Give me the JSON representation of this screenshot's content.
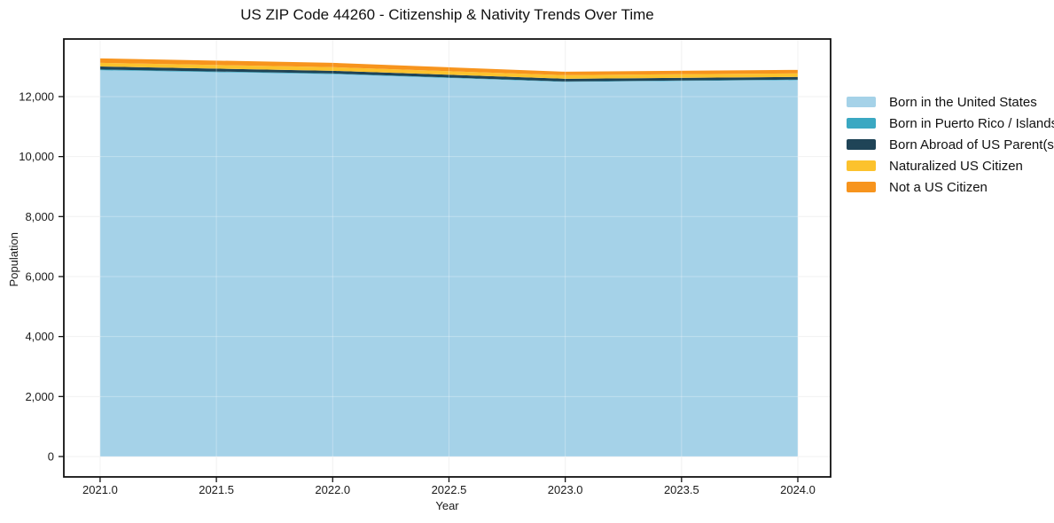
{
  "figure": {
    "title": "US ZIP Code 44260 - Citizenship & Nativity Trends Over Time",
    "xlabel": "Year",
    "ylabel": "Population"
  },
  "chart_data": {
    "type": "area",
    "stacked": true,
    "title": "US ZIP Code 44260 - Citizenship & Nativity Trends Over Time",
    "xlabel": "Year",
    "ylabel": "Population",
    "grid": true,
    "legend_position": "outside-right",
    "x": [
      2021,
      2022,
      2023,
      2024
    ],
    "series": [
      {
        "name": "Born in the United States",
        "color": "#a5d2e8",
        "values": [
          12880,
          12750,
          12490,
          12550
        ]
      },
      {
        "name": "Born in Puerto Rico / Islands",
        "color": "#3aa8c2",
        "values": [
          25,
          20,
          15,
          15
        ]
      },
      {
        "name": "Born Abroad of US Parent(s)",
        "color": "#1f4457",
        "values": [
          100,
          90,
          90,
          90
        ]
      },
      {
        "name": "Naturalized US Citizen",
        "color": "#fcc22d",
        "values": [
          120,
          120,
          120,
          120
        ]
      },
      {
        "name": "Not a US Citizen",
        "color": "#f7941d",
        "values": [
          150,
          145,
          115,
          115
        ]
      }
    ],
    "stack_totals": [
      13275,
      13125,
      12830,
      12890
    ],
    "x_ticks": {
      "values": [
        2021,
        2021.5,
        2022,
        2022.5,
        2023,
        2023.5,
        2024
      ],
      "labels": [
        "2021.0",
        "2021.5",
        "2022.0",
        "2022.5",
        "2023.0",
        "2023.5",
        "2024.0"
      ]
    },
    "y_ticks": {
      "values": [
        0,
        2000,
        4000,
        6000,
        8000,
        10000,
        12000
      ],
      "labels": [
        "0",
        "2,000",
        "4,000",
        "6,000",
        "8,000",
        "10,000",
        "12,000"
      ]
    },
    "xlim": [
      2020.844,
      2024.141
    ],
    "ylim": [
      -680,
      13920
    ],
    "axis_color": "#111111",
    "tick_label_color": "#1a1a1a",
    "grid_color": "#ededed"
  }
}
